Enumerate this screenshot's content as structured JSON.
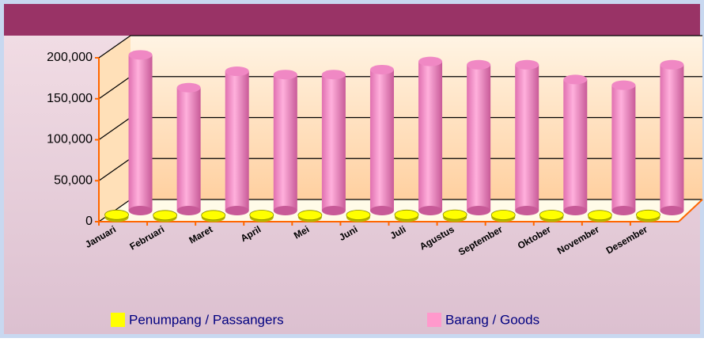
{
  "chart_data": {
    "type": "bar3d",
    "categories": [
      "Januari",
      "Februari",
      "Maret",
      "April",
      "Mei",
      "Juni",
      "Juli",
      "Agustus",
      "September",
      "Oktober",
      "November",
      "Desember"
    ],
    "series": [
      {
        "name": "Penumpang / Passangers",
        "color": "#ffff00",
        "values": [
          3000,
          2500,
          2500,
          2800,
          2600,
          2800,
          3000,
          3200,
          2800,
          2800,
          2600,
          3000
        ]
      },
      {
        "name": "Barang / Goods",
        "color": "#ff99cc",
        "values": [
          190000,
          150000,
          170000,
          166000,
          166000,
          172000,
          182000,
          178000,
          178000,
          160000,
          153000,
          178000
        ]
      }
    ],
    "ylim": [
      0,
      200000
    ],
    "yticks": [
      0,
      {
        "value": 50000,
        "label": "50,000"
      },
      {
        "value": 100000,
        "label": "100,000"
      },
      {
        "value": 150000,
        "label": "150,000"
      },
      {
        "value": 200000,
        "label": "200,000"
      }
    ],
    "grid": true
  }
}
